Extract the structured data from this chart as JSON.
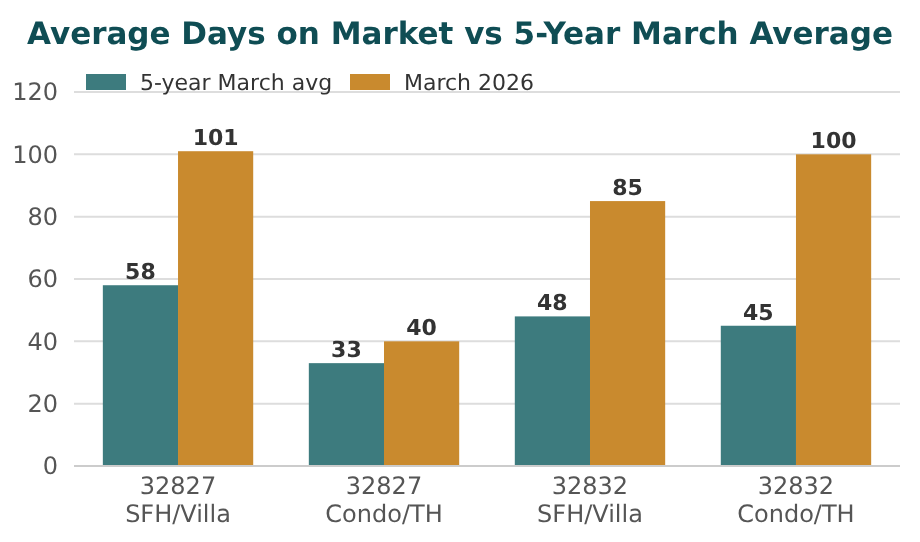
{
  "chart_data": {
    "type": "bar",
    "title": "Average Days on Market vs 5-Year March Average",
    "categories": [
      "32827\nSFH/Villa",
      "32827\nCondo/TH",
      "32832\nSFH/Villa",
      "32832\nCondo/TH"
    ],
    "series": [
      {
        "name": "5-year March avg",
        "color": "#3d7b7e",
        "values": [
          58,
          33,
          48,
          45
        ]
      },
      {
        "name": "March 2026",
        "color": "#c98a2e",
        "values": [
          101,
          40,
          85,
          100
        ]
      }
    ],
    "ylim": [
      0,
      120
    ],
    "yticks": [
      0,
      20,
      40,
      60,
      80,
      100,
      120
    ],
    "grid": "y",
    "legend": "top left",
    "data_labels": true
  }
}
